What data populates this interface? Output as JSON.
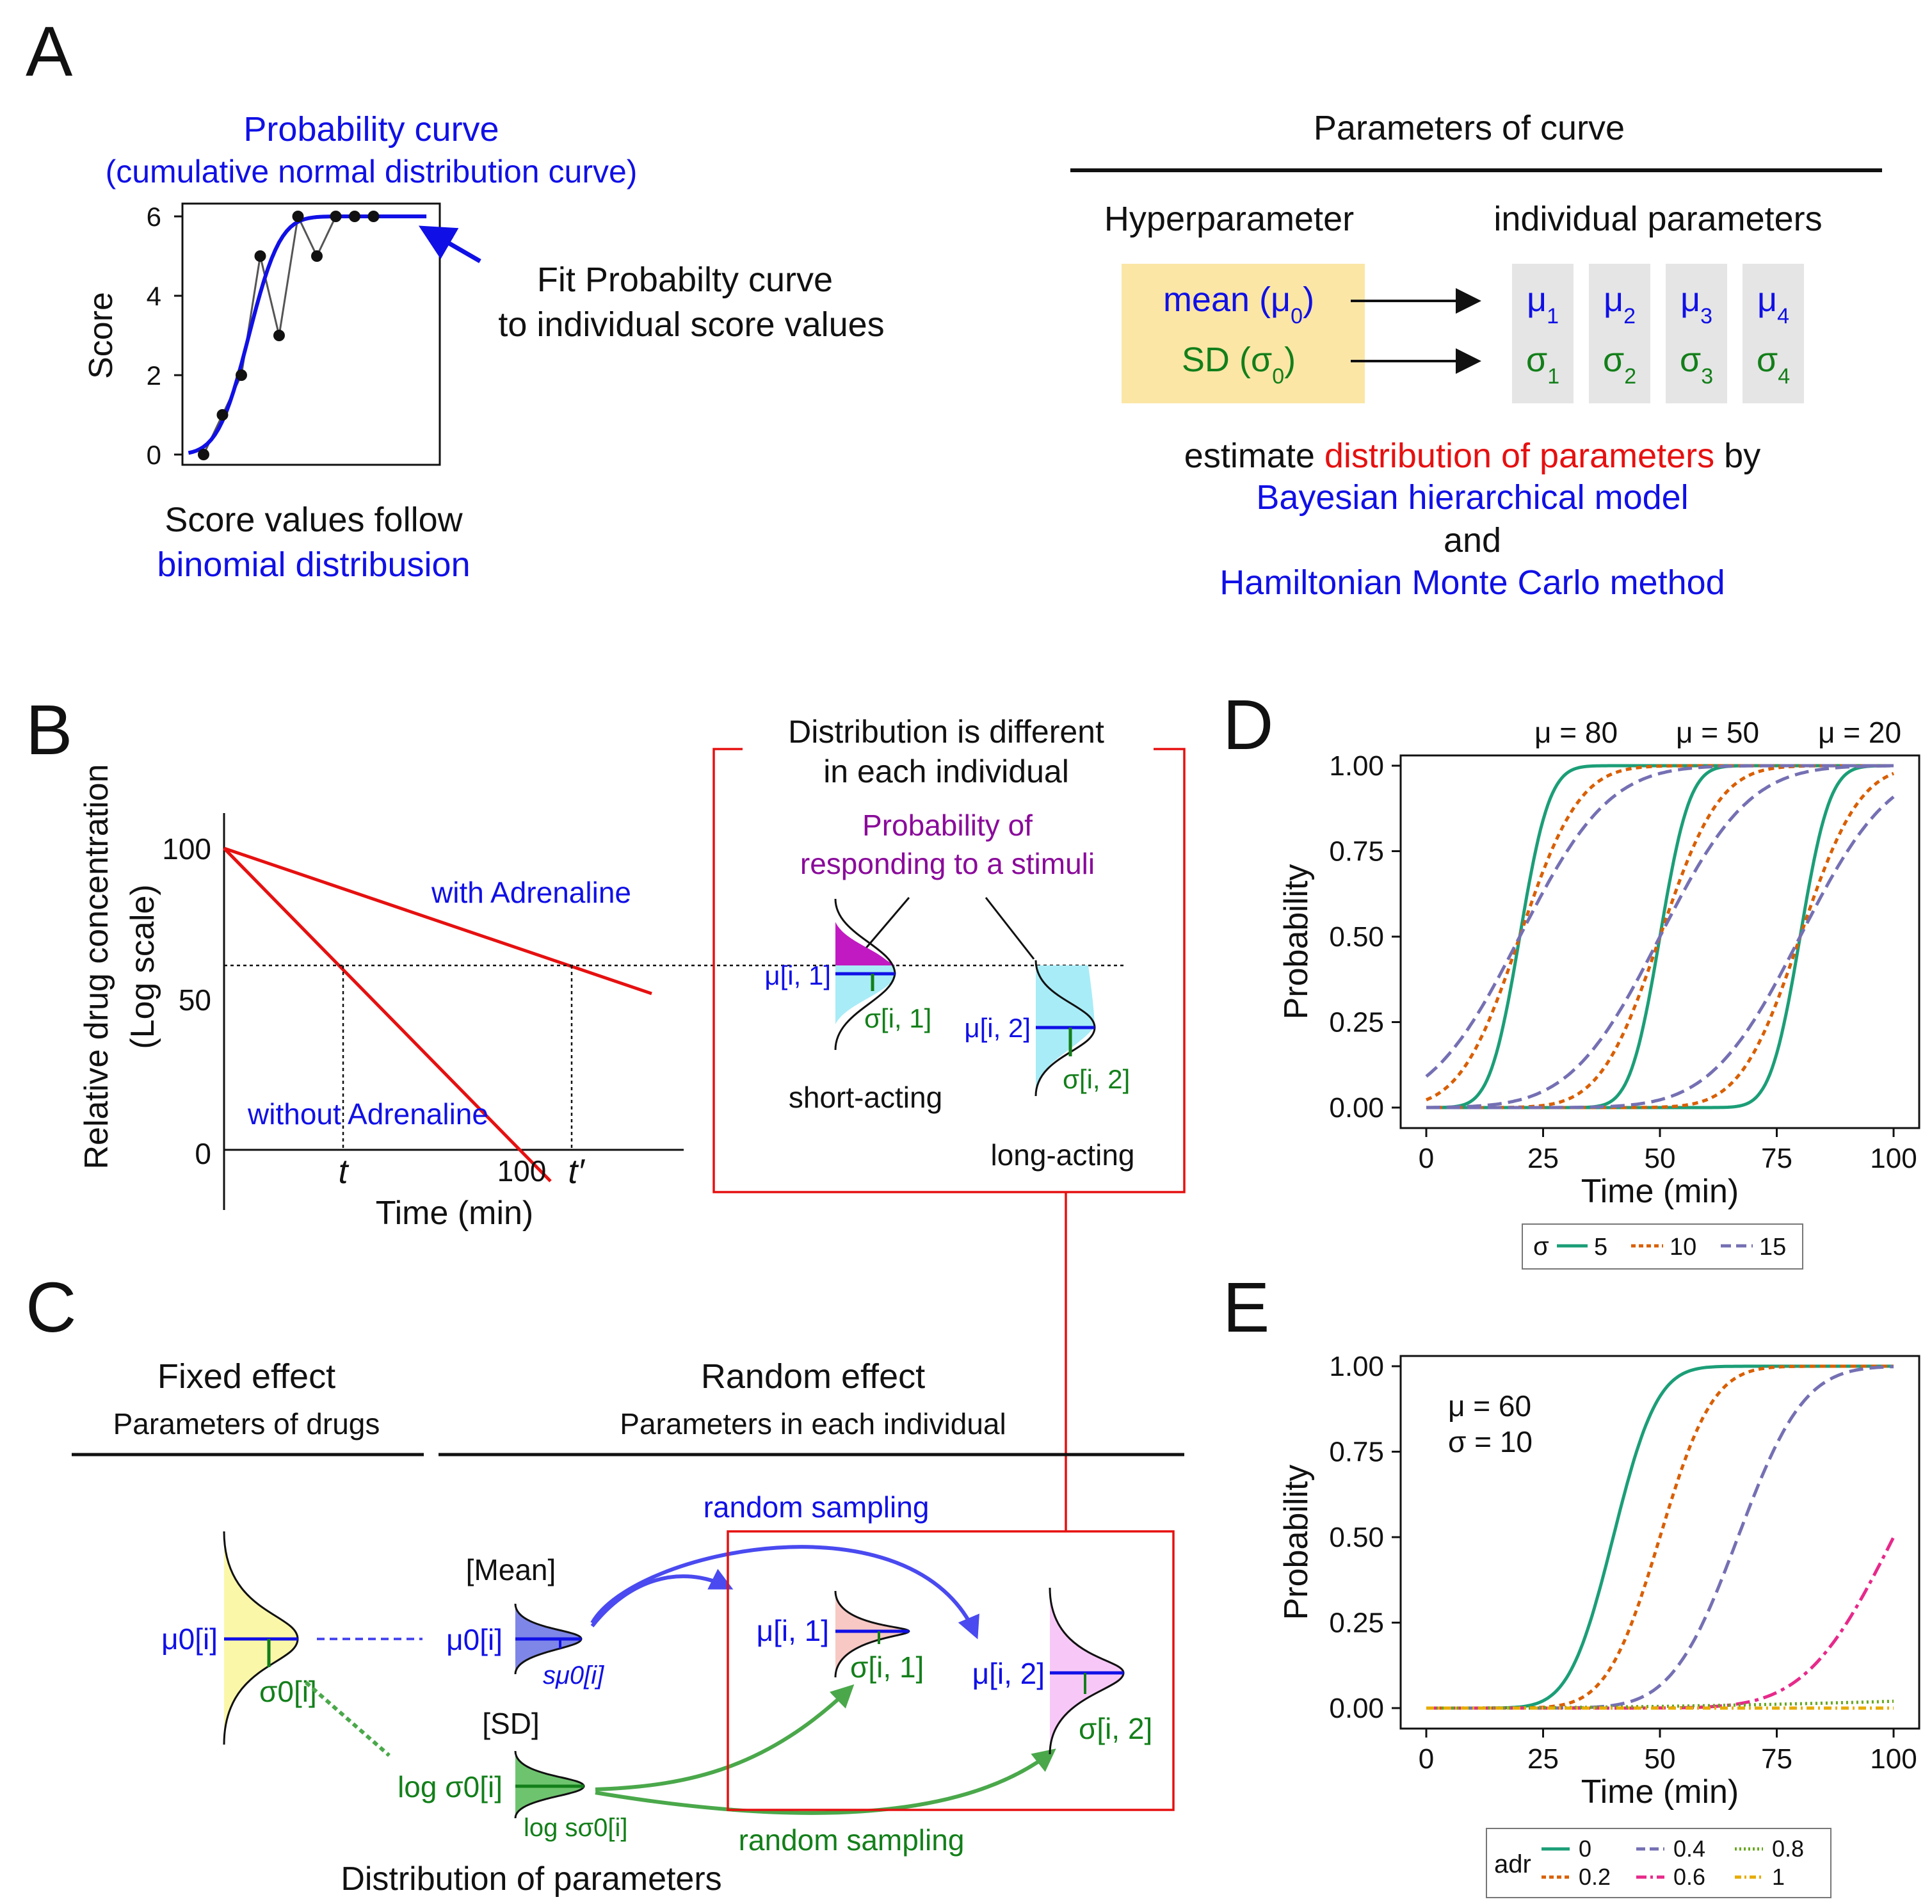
{
  "panelA": {
    "label": "A",
    "curve_title_1": "Probability curve",
    "curve_title_2": "(cumulative normal distribution curve)",
    "y_axis_label": "Score",
    "y_ticks": [
      "0",
      "2",
      "4",
      "6"
    ],
    "fit_text_1": "Fit Probabilty curve",
    "fit_text_2": "to individual score values",
    "score_text_1": "Score values follow",
    "score_text_2": "binomial distribusion",
    "params_title": "Parameters of curve",
    "hyper_label": "Hyperparameter",
    "indiv_label": "individual parameters",
    "mean_label": "mean (μ",
    "mean_sub": "0",
    "sd_label": "SD (σ",
    "sd_sub": "0",
    "mu_boxes": [
      {
        "mu": "μ",
        "mu_sub": "1",
        "sigma": "σ",
        "sigma_sub": "1"
      },
      {
        "mu": "μ",
        "mu_sub": "2",
        "sigma": "σ",
        "sigma_sub": "2"
      },
      {
        "mu": "μ",
        "mu_sub": "3",
        "sigma": "σ",
        "sigma_sub": "3"
      },
      {
        "mu": "μ",
        "mu_sub": "4",
        "sigma": "σ",
        "sigma_sub": "4"
      }
    ],
    "estimate_1": "estimate ",
    "estimate_red": "distribution of parameters",
    "estimate_2": " by",
    "bayes": "Bayesian hierarchical model",
    "and": "and",
    "hmc": "Hamiltonian Monte Carlo method",
    "score_points": [
      {
        "x": 1,
        "y": 0
      },
      {
        "x": 2,
        "y": 1
      },
      {
        "x": 3,
        "y": 2
      },
      {
        "x": 4,
        "y": 5
      },
      {
        "x": 5,
        "y": 3
      },
      {
        "x": 6,
        "y": 6
      },
      {
        "x": 7,
        "y": 5
      },
      {
        "x": 8,
        "y": 6
      },
      {
        "x": 9,
        "y": 6
      },
      {
        "x": 10,
        "y": 6
      }
    ]
  },
  "panelB": {
    "label": "B",
    "y_label_1": "Relative drug concentration",
    "y_label_2": "(Log scale)",
    "y_ticks": [
      "100",
      "50",
      "0"
    ],
    "x_tick_100": "100",
    "x_label": "Time (min)",
    "t": "t",
    "t_prime": "t′",
    "with": "with Adrenaline",
    "without": "without Adrenaline",
    "box_title_1": "Distribution is different",
    "box_title_2": "in each individual",
    "prob_1": "Probability of",
    "prob_2": "responding to a stimuli",
    "mu1": "μ[i, 1]",
    "sigma1": "σ[i, 1]",
    "mu2": "μ[i, 2]",
    "sigma2": "σ[i, 2]",
    "short": "short-acting",
    "long": "long-acting"
  },
  "panelC": {
    "label": "C",
    "fixed_title": "Fixed effect",
    "fixed_sub": "Parameters of drugs",
    "random_title": "Random effect",
    "random_sub": "Parameters in each individual",
    "mu0": "μ0[i]",
    "sigma0": "σ0[i]",
    "mean_tag": "[Mean]",
    "sd_tag": "[SD]",
    "mu0_b": "μ0[i]",
    "s_mu0": "sμ0[i]",
    "log_sigma0": "log σ0[i]",
    "log_s_sigma0": "log sσ0[i]",
    "random_sampling_top": "random sampling",
    "random_sampling_bottom": "random sampling",
    "mu1": "μ[i, 1]",
    "sigma1": "σ[i, 1]",
    "mu2": "μ[i, 2]",
    "sigma2": "σ[i, 2]",
    "dist_params": "Distribution of parameters"
  },
  "panelD": {
    "label": "D",
    "mu_labels": [
      "μ = 80",
      "μ = 50",
      "μ = 20"
    ],
    "legend_title": "σ",
    "legend_items": [
      "5",
      "10",
      "15"
    ]
  },
  "panelE": {
    "label": "E",
    "annot_1": "μ = 60",
    "annot_2": "σ = 10",
    "legend_title": "adr",
    "legend_items": [
      "0",
      "0.2",
      "0.4",
      "0.6",
      "0.8",
      "1"
    ]
  },
  "chart_data": [
    {
      "type": "line",
      "title": "",
      "xlabel": "Time (min)",
      "ylabel": "Probability",
      "xlim": [
        0,
        100
      ],
      "ylim": [
        0,
        1
      ],
      "x_ticks": [
        "0",
        "25",
        "50",
        "75",
        "100"
      ],
      "y_ticks": [
        "0.00",
        "0.25",
        "0.50",
        "0.75",
        "1.00"
      ],
      "series": [
        {
          "name": "σ = 5",
          "sigma": 5,
          "mus": [
            20,
            50,
            80
          ],
          "color": "#1b9e77"
        },
        {
          "name": "σ = 10",
          "sigma": 10,
          "mus": [
            20,
            50,
            80
          ],
          "color": "#d95f02"
        },
        {
          "name": "σ = 15",
          "sigma": 15,
          "mus": [
            20,
            50,
            80
          ],
          "color": "#7570b3"
        }
      ]
    },
    {
      "type": "line",
      "title": "",
      "xlabel": "Time (min)",
      "ylabel": "Probability",
      "xlim": [
        0,
        100
      ],
      "ylim": [
        0,
        1
      ],
      "x_ticks": [
        "0",
        "25",
        "50",
        "75",
        "100"
      ],
      "y_ticks": [
        "0.00",
        "0.25",
        "0.50",
        "0.75",
        "1.00"
      ],
      "series": [
        {
          "name": "adr 0",
          "mu": 40,
          "sigma": 7.4,
          "color": "#1b9e77"
        },
        {
          "name": "adr 0.2",
          "mu": 50,
          "sigma": 8.9,
          "color": "#d95f02"
        },
        {
          "name": "adr 0.4",
          "mu": 66.7,
          "sigma": 11.1,
          "color": "#7570b3"
        },
        {
          "name": "adr 0.6",
          "mu": 100,
          "sigma": 14.8,
          "color": "#e7298a"
        },
        {
          "name": "adr 0.8",
          "mu": 200,
          "sigma": 33,
          "color": "#66a61e"
        },
        {
          "name": "adr 1",
          "mu": 10000,
          "sigma": 100,
          "color": "#e6ab02"
        }
      ]
    }
  ],
  "colors": {
    "blue": "#1010e6",
    "green": "#137f1a",
    "red": "#e61010",
    "purple": "#8a0a9a",
    "hyper_box": "#fbe6a6",
    "indiv_box": "#e5e5e5"
  }
}
